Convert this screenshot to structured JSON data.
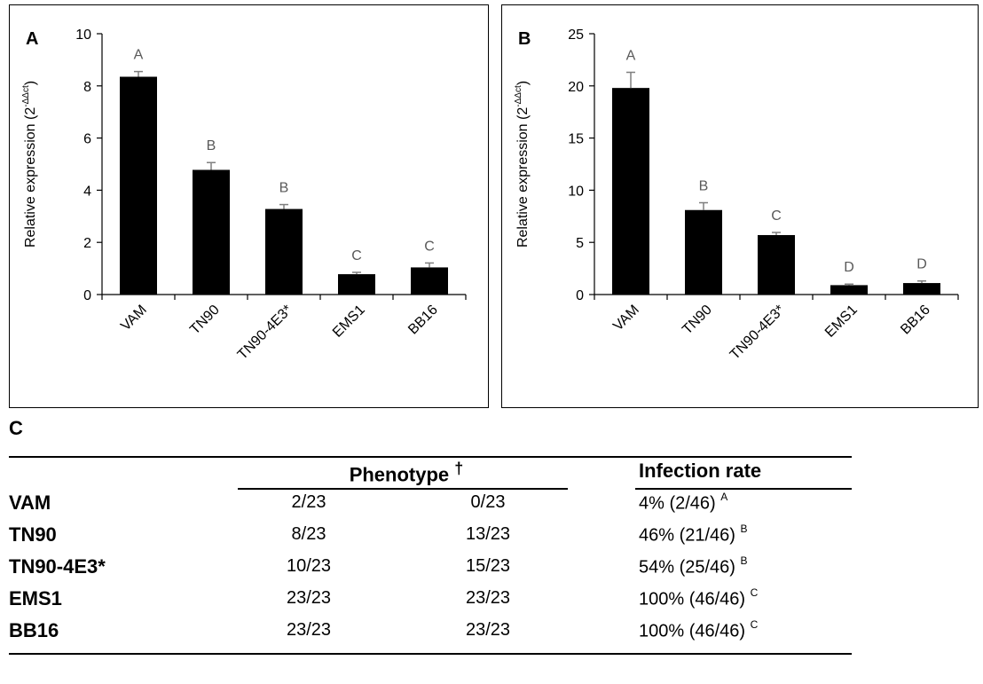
{
  "chart_data": [
    {
      "panel": "A",
      "type": "bar",
      "ylabel": "Relative expression (2",
      "ylabel_sup": "-ΔΔct",
      "ylabel_end": ")",
      "categories": [
        "VAM",
        "TN90",
        "TN90-4E3*",
        "EMS1",
        "BB16"
      ],
      "values": [
        8.35,
        4.78,
        3.28,
        0.78,
        1.04
      ],
      "errors": [
        0.2,
        0.28,
        0.17,
        0.07,
        0.17
      ],
      "significance": [
        "A",
        "B",
        "B",
        "C",
        "C"
      ],
      "ylim": [
        0,
        10
      ],
      "yticks": [
        0,
        2,
        4,
        6,
        8,
        10
      ],
      "grid": false,
      "bar_color": "#000000",
      "error_color": "#7f7f7f",
      "sig_color": "#595959"
    },
    {
      "panel": "B",
      "type": "bar",
      "ylabel": "Relative expression (2",
      "ylabel_sup": "-ΔΔct",
      "ylabel_end": ")",
      "categories": [
        "VAM",
        "TN90",
        "TN90-4E3*",
        "EMS1",
        "BB16"
      ],
      "values": [
        19.8,
        8.1,
        5.7,
        0.9,
        1.1
      ],
      "errors": [
        1.5,
        0.7,
        0.25,
        0.1,
        0.2
      ],
      "significance": [
        "A",
        "B",
        "C",
        "D",
        "D"
      ],
      "ylim": [
        0,
        25
      ],
      "yticks": [
        0,
        5,
        10,
        15,
        20,
        25
      ],
      "grid": false,
      "bar_color": "#000000",
      "error_color": "#7f7f7f",
      "sig_color": "#595959"
    }
  ],
  "table": {
    "panel": "C",
    "header_phenotype": "Phenotype",
    "header_dagger": "†",
    "header_rate": "Infection rate",
    "rows": [
      {
        "line": "VAM",
        "p1": "2/23",
        "p2": "0/23",
        "rate": "4% (2/46)",
        "letter": "A"
      },
      {
        "line": "TN90",
        "p1": "8/23",
        "p2": "13/23",
        "rate": "46% (21/46)",
        "letter": "B"
      },
      {
        "line": "TN90-4E3*",
        "p1": "10/23",
        "p2": "15/23",
        "rate": "54% (25/46)",
        "letter": "B"
      },
      {
        "line": "EMS1",
        "p1": "23/23",
        "p2": "23/23",
        "rate": "100% (46/46)",
        "letter": "C"
      },
      {
        "line": "BB16",
        "p1": "23/23",
        "p2": "23/23",
        "rate": "100% (46/46)",
        "letter": "C"
      }
    ]
  }
}
